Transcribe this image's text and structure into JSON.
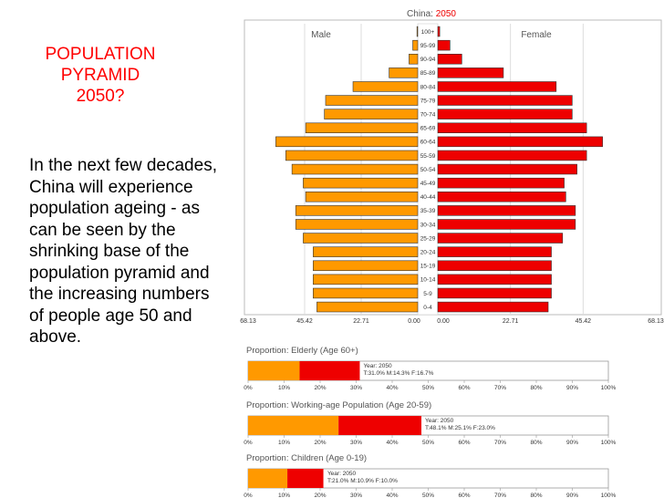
{
  "slide": {
    "title_lines": [
      "POPULATION",
      "PYRAMID",
      "2050?"
    ],
    "body": "In the next few decades, China will experience population ageing - as can be seen by the shrinking base of the population pyramid and the increasing numbers of people age 50 and above."
  },
  "chart_data": [
    {
      "type": "bar",
      "subtype": "population_pyramid",
      "title_prefix": "China:",
      "title_year": "2050",
      "left_label": "Male",
      "right_label": "Female",
      "categories": [
        "100+",
        "95-99",
        "90-94",
        "85-89",
        "80-84",
        "75-79",
        "70-74",
        "65-69",
        "60-64",
        "55-59",
        "50-54",
        "45-49",
        "40-44",
        "35-39",
        "30-34",
        "25-29",
        "20-24",
        "15-19",
        "10-14",
        "5-9",
        "0-4"
      ],
      "series": [
        {
          "name": "Male",
          "color": "#ff9900",
          "values": [
            0.3,
            2.0,
            3.5,
            11.5,
            26.0,
            37.0,
            37.5,
            45.0,
            57.0,
            53.0,
            50.5,
            46.0,
            45.0,
            49.0,
            49.0,
            46.0,
            42.0,
            42.0,
            42.0,
            42.0,
            40.5
          ]
        },
        {
          "name": "Female",
          "color": "#ee0000",
          "values": [
            0.6,
            3.8,
            7.5,
            20.5,
            37.0,
            42.0,
            42.0,
            46.5,
            51.5,
            46.5,
            43.5,
            39.5,
            40.0,
            43.0,
            43.0,
            39.0,
            35.5,
            35.5,
            35.5,
            35.5,
            34.5
          ]
        }
      ],
      "xticks_left": [
        "68.13",
        "45.42",
        "22.71",
        "0.00"
      ],
      "xticks_right": [
        "0.00",
        "22.71",
        "45.42",
        "68.13"
      ],
      "xlim": [
        0,
        68.13
      ]
    },
    {
      "type": "bar",
      "subtype": "stacked_proportion",
      "title": "Proportion: Elderly (Age 60+)",
      "total": 31.0,
      "series": [
        {
          "name": "M",
          "value": 14.3,
          "color": "#ff9900"
        },
        {
          "name": "F",
          "value": 16.7,
          "color": "#ee0000"
        }
      ],
      "info_year": "Year: 2050",
      "info_values": "T:31.0%  M:14.3%  F:16.7%",
      "ticks": [
        "0%",
        "10%",
        "20%",
        "30%",
        "40%",
        "50%",
        "60%",
        "70%",
        "80%",
        "90%",
        "100%"
      ],
      "xlim": [
        0,
        100
      ]
    },
    {
      "type": "bar",
      "subtype": "stacked_proportion",
      "title": "Proportion: Working-age Population (Age 20-59)",
      "total": 48.1,
      "series": [
        {
          "name": "M",
          "value": 25.1,
          "color": "#ff9900"
        },
        {
          "name": "F",
          "value": 23.0,
          "color": "#ee0000"
        }
      ],
      "info_year": "Year: 2050",
      "info_values": "T:48.1%  M:25.1%  F:23.0%",
      "ticks": [
        "0%",
        "10%",
        "20%",
        "30%",
        "40%",
        "50%",
        "60%",
        "70%",
        "80%",
        "90%",
        "100%"
      ],
      "xlim": [
        0,
        100
      ]
    },
    {
      "type": "bar",
      "subtype": "stacked_proportion",
      "title": "Proportion: Children (Age 0-19)",
      "total": 21.0,
      "series": [
        {
          "name": "M",
          "value": 10.9,
          "color": "#ff9900"
        },
        {
          "name": "F",
          "value": 10.0,
          "color": "#ee0000"
        }
      ],
      "info_year": "Year: 2050",
      "info_values": "T:21.0%  M:10.9%  F:10.0%",
      "ticks": [
        "0%",
        "10%",
        "20%",
        "30%",
        "40%",
        "50%",
        "60%",
        "70%",
        "80%",
        "90%",
        "100%"
      ],
      "xlim": [
        0,
        100
      ]
    }
  ]
}
